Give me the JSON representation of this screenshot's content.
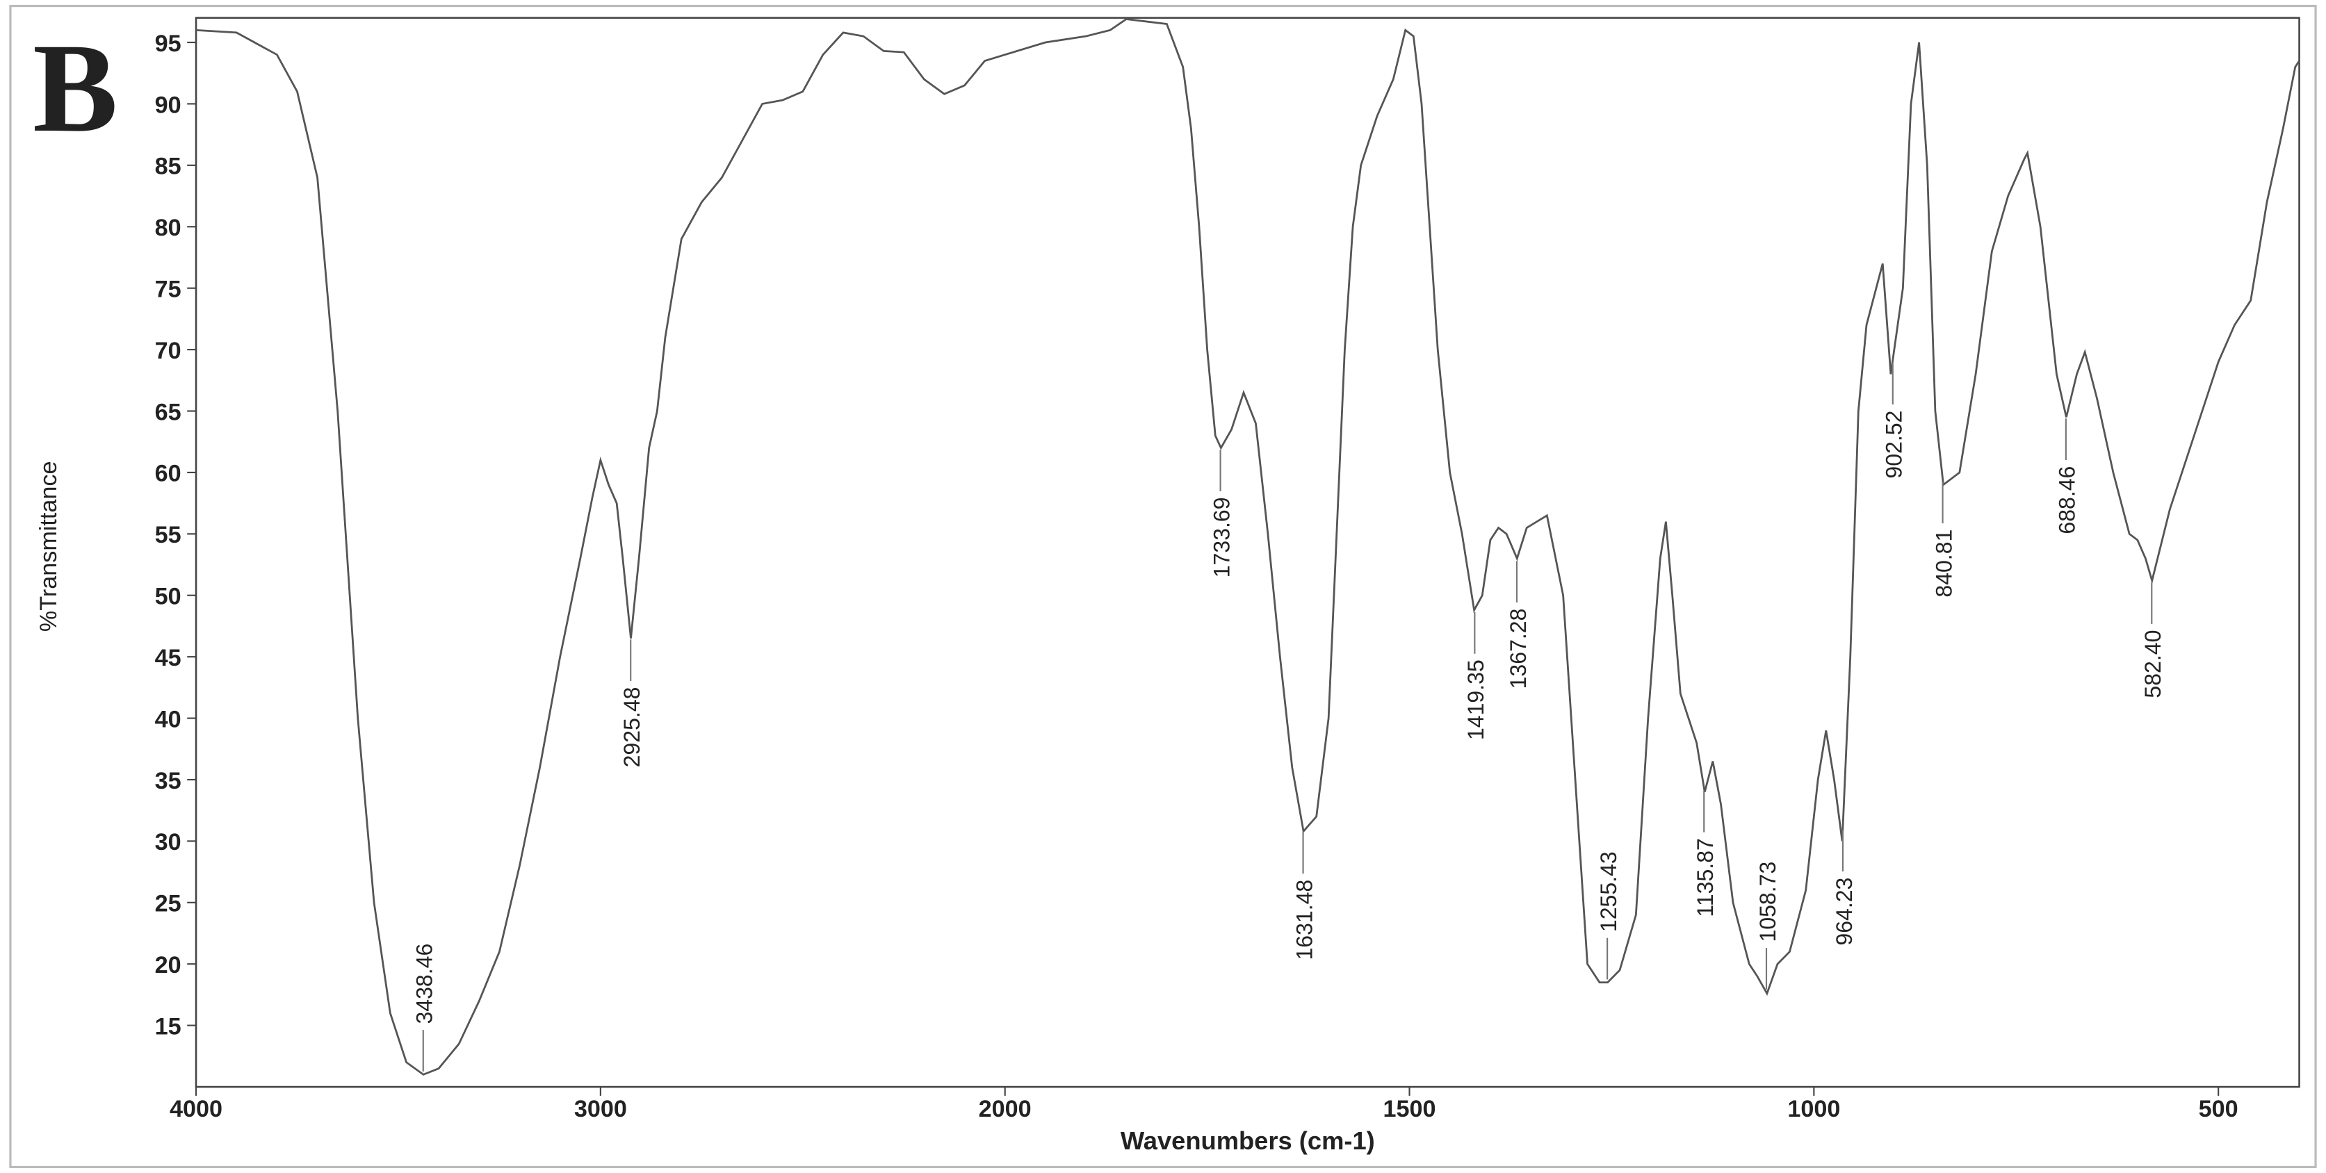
{
  "chart_data": {
    "type": "line",
    "panel_label": "B",
    "x_label": "Wavenumbers (cm-1)",
    "y_label": "%Transmittance",
    "xlim": [
      4000,
      400
    ],
    "ylim": [
      10,
      97
    ],
    "x_scale_break": {
      "at": 2000,
      "factor": 2
    },
    "xticks": [
      4000,
      3000,
      2000,
      1500,
      1000,
      500
    ],
    "yticks": [
      15,
      20,
      25,
      30,
      35,
      40,
      45,
      50,
      55,
      60,
      65,
      70,
      75,
      80,
      85,
      90,
      95
    ],
    "grid": false,
    "x": [
      4000,
      3900,
      3800,
      3750,
      3700,
      3650,
      3600,
      3560,
      3520,
      3480,
      3438,
      3400,
      3350,
      3300,
      3250,
      3200,
      3150,
      3100,
      3050,
      3020,
      3000,
      2980,
      2960,
      2945,
      2925,
      2905,
      2880,
      2860,
      2840,
      2800,
      2750,
      2700,
      2650,
      2600,
      2550,
      2500,
      2450,
      2400,
      2350,
      2300,
      2250,
      2200,
      2150,
      2100,
      2050,
      2000,
      1950,
      1900,
      1870,
      1850,
      1800,
      1780,
      1770,
      1760,
      1750,
      1740,
      1733,
      1720,
      1705,
      1690,
      1675,
      1660,
      1645,
      1631,
      1615,
      1600,
      1590,
      1580,
      1570,
      1560,
      1540,
      1520,
      1505,
      1495,
      1485,
      1475,
      1465,
      1450,
      1435,
      1420,
      1410,
      1400,
      1390,
      1380,
      1367,
      1355,
      1330,
      1310,
      1300,
      1290,
      1280,
      1265,
      1255,
      1240,
      1220,
      1205,
      1190,
      1183,
      1175,
      1165,
      1155,
      1145,
      1135,
      1125,
      1115,
      1100,
      1080,
      1070,
      1058,
      1045,
      1030,
      1010,
      995,
      985,
      975,
      965,
      955,
      945,
      935,
      915,
      905,
      890,
      880,
      870,
      860,
      850,
      840,
      820,
      800,
      780,
      760,
      740,
      736,
      720,
      700,
      688,
      675,
      665,
      650,
      630,
      610,
      600,
      590,
      582,
      560,
      530,
      500,
      480,
      460,
      440,
      420,
      405,
      400
    ],
    "series": [
      {
        "color": "#555555",
        "values": [
          96,
          95.8,
          94,
          91,
          84,
          65,
          40,
          25,
          16,
          12,
          11,
          11.5,
          13.5,
          17,
          21,
          28,
          36,
          45,
          53,
          58,
          61,
          59,
          57.5,
          53,
          46.5,
          53,
          62,
          65,
          71,
          79,
          82,
          84,
          87,
          90,
          90.3,
          91,
          94,
          95.8,
          95.5,
          94.3,
          94.2,
          92,
          90.8,
          91.5,
          93.5,
          94,
          95,
          95.5,
          96,
          96.9,
          96.5,
          93,
          88,
          80,
          70,
          63,
          62,
          63.5,
          66.5,
          64,
          55,
          45,
          36,
          30.8,
          32,
          40,
          55,
          70,
          80,
          85,
          89,
          92,
          96,
          95.5,
          90,
          80,
          70,
          60,
          55,
          48.8,
          50,
          54.5,
          55.5,
          55,
          53,
          55.5,
          56.5,
          50,
          40,
          30,
          20,
          18.5,
          18.5,
          19.5,
          24,
          40,
          53,
          56,
          50,
          42,
          40,
          38,
          34,
          36.5,
          33,
          25,
          20,
          19,
          17.6,
          20,
          21,
          26,
          35,
          39,
          35,
          30,
          45,
          65,
          72,
          77,
          68,
          75,
          90,
          95,
          85,
          65,
          59,
          60,
          68,
          78,
          82.5,
          85.5,
          86,
          80,
          68,
          64.5,
          68,
          69.8,
          66,
          60,
          55,
          54.5,
          53,
          51.2,
          57,
          63,
          69,
          72,
          74,
          82,
          88,
          93,
          93.5
        ]
      }
    ],
    "annotations": [
      {
        "x": 3438.46,
        "text": "3438.46"
      },
      {
        "x": 2925.48,
        "text": "2925.48"
      },
      {
        "x": 1733.69,
        "text": "1733.69"
      },
      {
        "x": 1631.48,
        "text": "1631.48"
      },
      {
        "x": 1419.35,
        "text": "1419.35"
      },
      {
        "x": 1367.28,
        "text": "1367.28"
      },
      {
        "x": 1255.43,
        "text": "1255.43"
      },
      {
        "x": 1135.87,
        "text": "1135.87"
      },
      {
        "x": 1058.73,
        "text": "1058.73"
      },
      {
        "x": 964.23,
        "text": "964.23"
      },
      {
        "x": 902.52,
        "text": "902.52"
      },
      {
        "x": 840.81,
        "text": "840.81"
      },
      {
        "x": 688.46,
        "text": "688.46"
      },
      {
        "x": 582.4,
        "text": "582.40"
      }
    ]
  }
}
